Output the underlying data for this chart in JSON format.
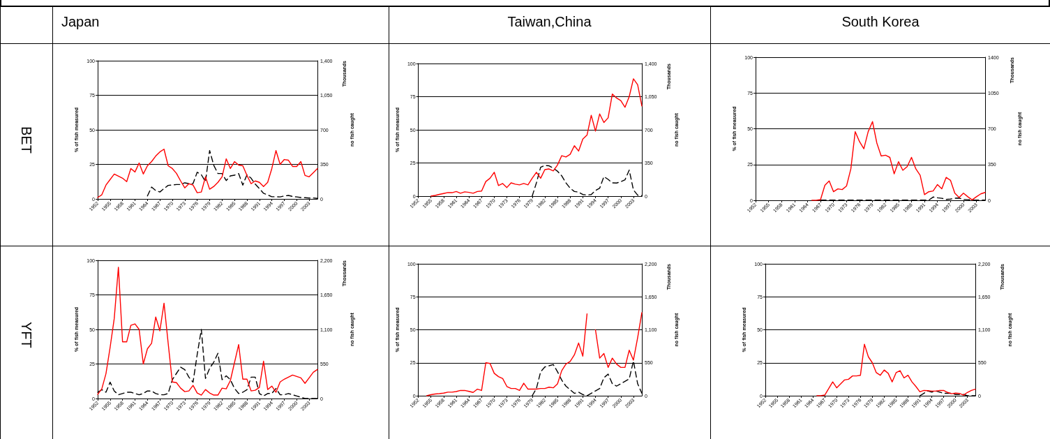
{
  "chart_data": [
    {
      "type": "line",
      "title": "Japan",
      "subtitle": "BET",
      "ylabel": "% of fish measured",
      "y2label": "no fish caught",
      "annotations": [
        "Thousands"
      ],
      "grid": "y",
      "marker": "none",
      "x": [
        1952,
        1953,
        1954,
        1955,
        1956,
        1957,
        1958,
        1959,
        1960,
        1961,
        1962,
        1963,
        1964,
        1965,
        1966,
        1967,
        1968,
        1969,
        1970,
        1971,
        1972,
        1973,
        1974,
        1975,
        1976,
        1977,
        1978,
        1979,
        1980,
        1981,
        1982,
        1983,
        1984,
        1985,
        1986,
        1987,
        1988,
        1989,
        1990,
        1991,
        1992,
        1993,
        1994,
        1995,
        1996,
        1997,
        1998,
        1999,
        2000,
        2001,
        2002,
        2003,
        2004,
        2005
      ],
      "xlim": [
        1952,
        2005
      ],
      "xticks": [
        1952,
        1955,
        1958,
        1961,
        1964,
        1967,
        1970,
        1973,
        1976,
        1979,
        1982,
        1985,
        1988,
        1991,
        1994,
        1997,
        2000,
        2003
      ],
      "ylim": [
        0,
        100
      ],
      "yticks": [
        0,
        25,
        50,
        75,
        100
      ],
      "y2lim": [
        0,
        1400
      ],
      "y2ticks": [
        0,
        350,
        700,
        {
          "value": 1050,
          "label": "1,050"
        },
        {
          "value": 1400,
          "label": "1,400"
        }
      ],
      "series": [
        {
          "color": "#ff0000",
          "line_style": "solid",
          "values": [
            1,
            3,
            10,
            14,
            18,
            16.5,
            15,
            12.5,
            22,
            19.5,
            26,
            18,
            24,
            27,
            31,
            34,
            36,
            24,
            22,
            18.5,
            13,
            8,
            11,
            10,
            4.5,
            5,
            16,
            7,
            9,
            12,
            16,
            29,
            22,
            27,
            24.5,
            24,
            17,
            11,
            13,
            12,
            9,
            12,
            22,
            35,
            25,
            28.5,
            28,
            23.5,
            23.5,
            27,
            17,
            16,
            19,
            22
          ]
        },
        {
          "color": "#000000",
          "line_style": "dashed",
          "axis": "y2",
          "values": [
            null,
            null,
            null,
            null,
            null,
            null,
            null,
            null,
            null,
            null,
            null,
            null,
            30,
            120,
            85,
            70,
            105,
            137,
            141,
            146,
            146,
            163,
            155,
            155,
            270,
            245,
            175,
            490,
            340,
            257,
            257,
            186,
            233,
            240,
            257,
            140,
            245,
            210,
            150,
            104,
            57,
            40,
            22,
            22,
            20,
            30,
            35,
            25,
            20,
            14,
            12,
            9,
            10,
            5
          ]
        }
      ]
    },
    {
      "type": "line",
      "title": "Taiwan,China",
      "ylabel": "% of fish measured",
      "y2label": "no fish caught",
      "annotations": [
        "Thousands"
      ],
      "grid": "y",
      "marker": "none",
      "x": [
        1955,
        1956,
        1957,
        1958,
        1959,
        1960,
        1961,
        1962,
        1963,
        1964,
        1965,
        1966,
        1967,
        1968,
        1969,
        1970,
        1971,
        1972,
        1973,
        1974,
        1975,
        1976,
        1977,
        1978,
        1979,
        1980,
        1981,
        1982,
        1983,
        1984,
        1985,
        1986,
        1987,
        1988,
        1989,
        1990,
        1991,
        1992,
        1993,
        1994,
        1995,
        1996,
        1997,
        1998,
        1999,
        2000,
        2001,
        2002,
        2003,
        2004,
        2005
      ],
      "xlim": [
        1952,
        2005
      ],
      "xticks": [
        1952,
        1955,
        1958,
        1961,
        1964,
        1967,
        1970,
        1973,
        1976,
        1979,
        1982,
        1985,
        1988,
        1991,
        1994,
        1997,
        2000,
        2003
      ],
      "ylim": [
        0,
        100
      ],
      "yticks": [
        0,
        25,
        50,
        75,
        100
      ],
      "y2lim": [
        0,
        1400
      ],
      "y2ticks": [
        0,
        350,
        700,
        {
          "value": 1050,
          "label": "1,050"
        },
        {
          "value": 1400,
          "label": "1,400"
        }
      ],
      "series": [
        {
          "color": "#ff0000",
          "line_style": "solid",
          "values": [
            0,
            0.5,
            1.3,
            2,
            2.7,
            2.6,
            3.5,
            2.2,
            3.2,
            2.8,
            2.2,
            3.5,
            3.8,
            11,
            13.5,
            18,
            8,
            9.5,
            6.5,
            10,
            9,
            8.5,
            9.5,
            8.5,
            13.5,
            18,
            13.5,
            20,
            20.5,
            19,
            23.5,
            30.5,
            29.5,
            31.5,
            38,
            34,
            43,
            46,
            61,
            49,
            62,
            55.5,
            59,
            77,
            74,
            72,
            67,
            75,
            88.5,
            84,
            68
          ]
        },
        {
          "color": "#000000",
          "line_style": "dashed",
          "axis": "y2",
          "values": [
            null,
            null,
            null,
            null,
            null,
            null,
            null,
            null,
            null,
            null,
            null,
            null,
            null,
            null,
            null,
            null,
            null,
            null,
            null,
            null,
            null,
            null,
            null,
            null,
            0,
            140,
            305,
            324,
            320,
            295,
            263,
            214,
            140,
            84,
            49,
            42,
            17,
            12,
            17,
            59,
            84,
            206,
            177,
            140,
            138,
            152,
            172,
            275,
            66,
            10,
            5
          ]
        }
      ]
    },
    {
      "type": "line",
      "title": "South Korea",
      "ylabel": "% of fish measured",
      "y2label": "no fish caught",
      "annotations": [
        "Thousands"
      ],
      "grid": "y",
      "marker": "none",
      "x": [
        1965,
        1966,
        1967,
        1968,
        1969,
        1970,
        1971,
        1972,
        1973,
        1974,
        1975,
        1976,
        1977,
        1978,
        1979,
        1980,
        1981,
        1982,
        1983,
        1984,
        1985,
        1986,
        1987,
        1988,
        1989,
        1990,
        1991,
        1992,
        1993,
        1994,
        1995,
        1996,
        1997,
        1998,
        1999,
        2000,
        2001,
        2002,
        2003,
        2004,
        2005
      ],
      "xlim": [
        1952,
        2005
      ],
      "xticks": [
        1952,
        1955,
        1958,
        1961,
        1964,
        1967,
        1970,
        1973,
        1976,
        1979,
        1982,
        1985,
        1988,
        1991,
        1994,
        1997,
        2000,
        2003
      ],
      "ylim": [
        0,
        100
      ],
      "yticks": [
        0,
        25,
        50,
        75,
        100
      ],
      "y2lim": [
        0,
        1400
      ],
      "y2ticks": [
        0,
        350,
        700,
        1050,
        1400
      ],
      "series": [
        {
          "color": "#ff0000",
          "line_style": "solid",
          "values": [
            0,
            0,
            0.5,
            10.5,
            13.5,
            6,
            8,
            7.5,
            10,
            22,
            48,
            41,
            36,
            48,
            55,
            40,
            31,
            31.5,
            30,
            18.5,
            27,
            21,
            23.5,
            30,
            22,
            17.5,
            4,
            6,
            6.5,
            11,
            8,
            16,
            14,
            5,
            2,
            5,
            2.5,
            0.3,
            2.5,
            4.5,
            5.5
          ]
        },
        {
          "color": "#000000",
          "line_style": "dashed",
          "axis": "y2",
          "values": [
            null,
            null,
            2,
            2,
            2,
            2,
            2,
            2,
            2,
            2,
            2,
            2,
            2,
            2,
            2,
            2,
            2,
            2,
            2,
            2,
            2,
            2,
            2,
            2,
            2,
            2,
            2,
            2,
            32,
            25,
            20,
            8,
            12,
            20,
            22,
            8,
            6,
            3,
            2,
            2,
            2
          ]
        }
      ]
    },
    {
      "type": "line",
      "subtitle": "YFT",
      "ylabel": "% of fish measured",
      "y2label": "no fish caught",
      "annotations": [
        "Thousands"
      ],
      "grid": "y",
      "marker": "none",
      "x": [
        1952,
        1953,
        1954,
        1955,
        1956,
        1957,
        1958,
        1959,
        1960,
        1961,
        1962,
        1963,
        1964,
        1965,
        1966,
        1967,
        1968,
        1969,
        1970,
        1971,
        1972,
        1973,
        1974,
        1975,
        1976,
        1977,
        1978,
        1979,
        1980,
        1981,
        1982,
        1983,
        1984,
        1985,
        1986,
        1987,
        1988,
        1989,
        1990,
        1991,
        1992,
        1993,
        1994,
        1995,
        1996,
        1997,
        1998,
        1999,
        2000,
        2001,
        2002,
        2003,
        2004,
        2005
      ],
      "xlim": [
        1952,
        2005
      ],
      "xticks": [
        1952,
        1955,
        1958,
        1961,
        1964,
        1967,
        1970,
        1973,
        1976,
        1979,
        1982,
        1985,
        1988,
        1991,
        1994,
        1997,
        2000,
        2003
      ],
      "ylim": [
        0,
        100
      ],
      "yticks": [
        0,
        25,
        50,
        75,
        100
      ],
      "y2lim": [
        0,
        2200
      ],
      "y2ticks": [
        0,
        550,
        {
          "value": 1100,
          "label": "1,100"
        },
        {
          "value": 1650,
          "label": "1,650"
        },
        {
          "value": 2200,
          "label": "2,200"
        }
      ],
      "series": [
        {
          "color": "#ff0000",
          "line_style": "solid",
          "values": [
            3,
            7,
            18,
            37,
            58,
            95,
            41,
            41,
            53,
            54,
            50,
            25,
            36,
            40,
            59,
            49,
            69,
            40,
            12,
            11.5,
            7.5,
            5,
            5.5,
            9.5,
            4,
            2.5,
            6.5,
            4,
            2.5,
            2.5,
            7.5,
            7,
            13,
            26,
            39,
            14,
            14,
            5.5,
            6,
            8,
            27,
            6.5,
            9,
            4.5,
            12,
            14,
            15.5,
            17,
            16,
            15,
            11,
            15,
            19,
            21
          ]
        },
        {
          "color": "#000000",
          "line_style": "dashed",
          "axis": "y2",
          "values": [
            100,
            140,
            100,
            260,
            120,
            60,
            80,
            100,
            100,
            80,
            60,
            80,
            120,
            120,
            80,
            60,
            60,
            80,
            300,
            400,
            500,
            460,
            340,
            260,
            700,
            1100,
            320,
            480,
            580,
            720,
            300,
            360,
            300,
            160,
            80,
            100,
            140,
            340,
            340,
            80,
            40,
            80,
            80,
            160,
            60,
            60,
            80,
            60,
            40,
            20,
            0,
            0,
            0,
            0
          ]
        }
      ]
    },
    {
      "type": "line",
      "ylabel": "% of fish measured",
      "y2label": "no fish caught",
      "annotations": [
        "Thousands"
      ],
      "grid": "y",
      "marker": "none",
      "x": [
        1954,
        1955,
        1956,
        1957,
        1958,
        1959,
        1960,
        1961,
        1962,
        1963,
        1964,
        1965,
        1966,
        1967,
        1968,
        1969,
        1970,
        1971,
        1972,
        1973,
        1974,
        1975,
        1976,
        1977,
        1978,
        1979,
        1980,
        1981,
        1982,
        1983,
        1984,
        1985,
        1986,
        1987,
        1988,
        1989,
        1990,
        1991,
        1992,
        1993,
        1994,
        1995,
        1996,
        1997,
        1998,
        1999,
        2000,
        2001,
        2002,
        2003,
        2004,
        2005
      ],
      "xlim": [
        1952,
        2005
      ],
      "xticks": [
        1952,
        1955,
        1958,
        1961,
        1964,
        1967,
        1970,
        1973,
        1976,
        1979,
        1982,
        1985,
        1988,
        1991,
        1994,
        1997,
        2000,
        2003
      ],
      "ylim": [
        0,
        100
      ],
      "yticks": [
        0,
        25,
        50,
        75,
        100
      ],
      "y2lim": [
        0,
        2200
      ],
      "y2ticks": [
        0,
        550,
        {
          "value": 1100,
          "label": "1,100"
        },
        {
          "value": 1650,
          "label": "1,650"
        },
        {
          "value": 2200,
          "label": "2,200"
        }
      ],
      "series": [
        {
          "color": "#ff0000",
          "line_style": "solid",
          "values": [
            0,
            0.8,
            1.3,
            1.6,
            2,
            2.7,
            2.7,
            3.2,
            4,
            4,
            3.3,
            2.5,
            5,
            4,
            25,
            24.5,
            17,
            14.5,
            13,
            7,
            5.5,
            5.5,
            4,
            9.5,
            5,
            5,
            5,
            5.5,
            5.5,
            6.5,
            6,
            9,
            19,
            24,
            26,
            31,
            40,
            30,
            62,
            null,
            50,
            28.5,
            32,
            21.5,
            28.5,
            24,
            21.5,
            21.5,
            34.5,
            27,
            44,
            63
          ]
        },
        {
          "color": "#000000",
          "line_style": "dashed",
          "axis": "y2",
          "values": [
            null,
            null,
            null,
            null,
            null,
            null,
            null,
            null,
            null,
            null,
            null,
            null,
            null,
            null,
            null,
            null,
            null,
            null,
            null,
            null,
            null,
            null,
            null,
            null,
            null,
            0,
            120,
            400,
            480,
            500,
            520,
            400,
            260,
            160,
            100,
            40,
            60,
            20,
            0,
            40,
            80,
            120,
            300,
            360,
            200,
            160,
            200,
            240,
            280,
            580,
            200,
            40
          ]
        }
      ]
    },
    {
      "type": "line",
      "ylabel": "% of fish measured",
      "y2label": "no fish caught",
      "annotations": [
        "Thousands"
      ],
      "grid": "y",
      "marker": "none",
      "x": [
        1965,
        1966,
        1967,
        1968,
        1969,
        1970,
        1971,
        1972,
        1973,
        1974,
        1975,
        1976,
        1977,
        1978,
        1979,
        1980,
        1981,
        1982,
        1983,
        1984,
        1985,
        1986,
        1987,
        1988,
        1989,
        1990,
        1991,
        1992,
        1993,
        1994,
        1995,
        1996,
        1997,
        1998,
        1999,
        2000,
        2001,
        2002,
        2003,
        2004,
        2005
      ],
      "xlim": [
        1952,
        2005
      ],
      "xticks": [
        1952,
        1955,
        1958,
        1961,
        1964,
        1967,
        1970,
        1973,
        1976,
        1979,
        1982,
        1985,
        1988,
        1991,
        1994,
        1997,
        2000,
        2003
      ],
      "ylim": [
        0,
        100
      ],
      "yticks": [
        0,
        25,
        50,
        75,
        100
      ],
      "y2lim": [
        0,
        2200
      ],
      "y2ticks": [
        0,
        550,
        {
          "value": 1100,
          "label": "1,100"
        },
        {
          "value": 1650,
          "label": "1,650"
        },
        {
          "value": 2200,
          "label": "2,200"
        }
      ],
      "series": [
        {
          "color": "#ff0000",
          "line_style": "solid",
          "values": [
            0,
            0,
            0.5,
            5.5,
            10.5,
            6,
            9,
            12,
            12.5,
            15,
            15,
            15.5,
            39,
            29.5,
            25,
            17.5,
            15.5,
            19.5,
            17,
            10.5,
            17.5,
            19,
            13.5,
            15.5,
            10.5,
            7,
            3,
            4,
            3.8,
            3.5,
            3.5,
            4,
            4,
            2.5,
            1.5,
            2,
            1.8,
            0.5,
            2.5,
            4,
            5
          ]
        },
        {
          "color": "#000000",
          "line_style": "dashed",
          "axis": "y2",
          "values": [
            null,
            null,
            null,
            null,
            null,
            null,
            null,
            null,
            null,
            null,
            null,
            null,
            null,
            null,
            null,
            null,
            null,
            null,
            null,
            null,
            null,
            null,
            null,
            null,
            null,
            null,
            0,
            40,
            80,
            60,
            80,
            60,
            40,
            40,
            40,
            20,
            20,
            20,
            0,
            0,
            0
          ]
        }
      ]
    }
  ]
}
